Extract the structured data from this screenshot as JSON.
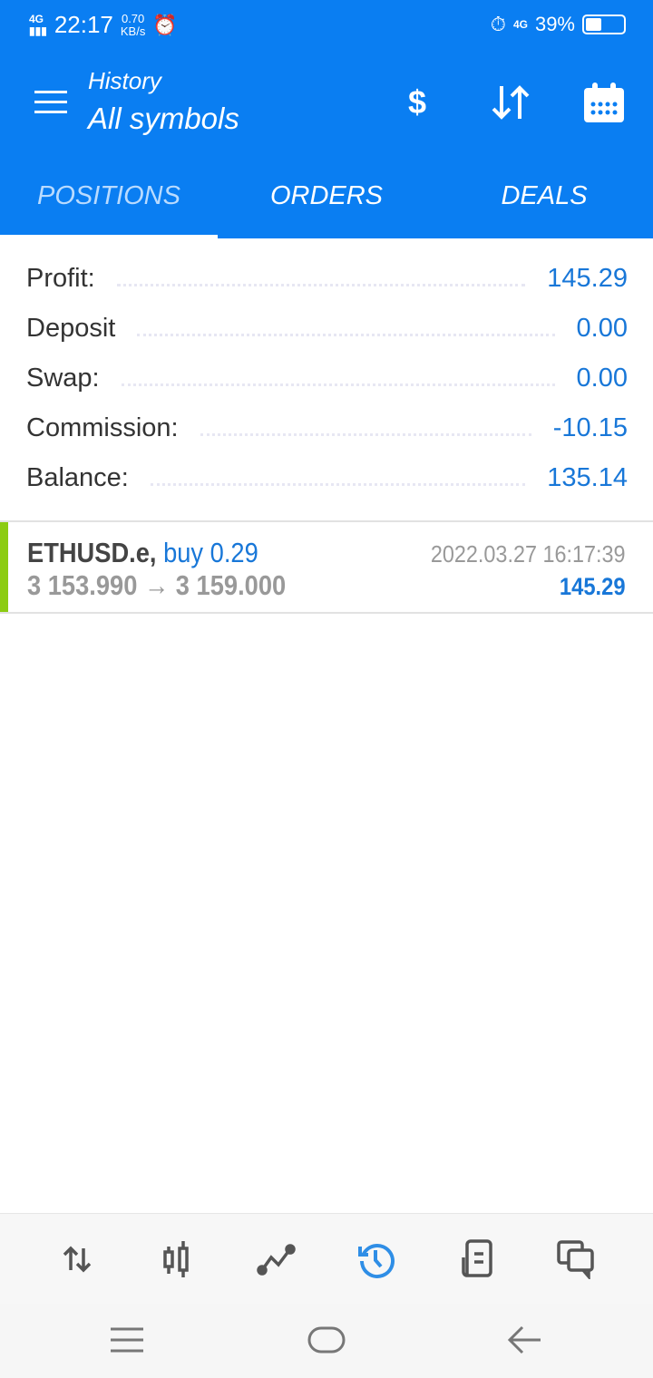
{
  "status_bar": {
    "network": "4G",
    "time": "22:17",
    "speed_value": "0.70",
    "speed_unit": "KB/s",
    "network_right": "4G",
    "battery": "39%",
    "battery_level": 0.39
  },
  "header": {
    "title": "History",
    "subtitle": "All symbols",
    "icons": [
      "currency-exchange-icon",
      "sort-icon",
      "calendar-icon"
    ]
  },
  "tabs": [
    {
      "label": "POSITIONS",
      "selected": true
    },
    {
      "label": "ORDERS"
    },
    {
      "label": "DEALS"
    }
  ],
  "summary": [
    {
      "label": "Profit:",
      "value": "145.29"
    },
    {
      "label": "Deposit",
      "value": "0.00"
    },
    {
      "label": "Swap:",
      "value": "0.00"
    },
    {
      "label": "Commission:",
      "value": "-10.15"
    },
    {
      "label": "Balance:",
      "value": "135.14"
    }
  ],
  "positions": [
    {
      "symbol": "ETHUSD.e,",
      "side": "buy 0.29",
      "prices": "3 153.990 → 3 159.000",
      "datetime": "2022.03.27 16:17:39",
      "profit": "145.29"
    }
  ],
  "bottom_nav": [
    "quotes-icon",
    "chart-icon",
    "trade-icon",
    "history-icon",
    "news-icon",
    "chat-icon"
  ],
  "colors": {
    "accent": "#0a7ef2",
    "value": "#1877d8",
    "buy_bar": "#8ccc12",
    "active_nav": "#2f8ee6"
  }
}
